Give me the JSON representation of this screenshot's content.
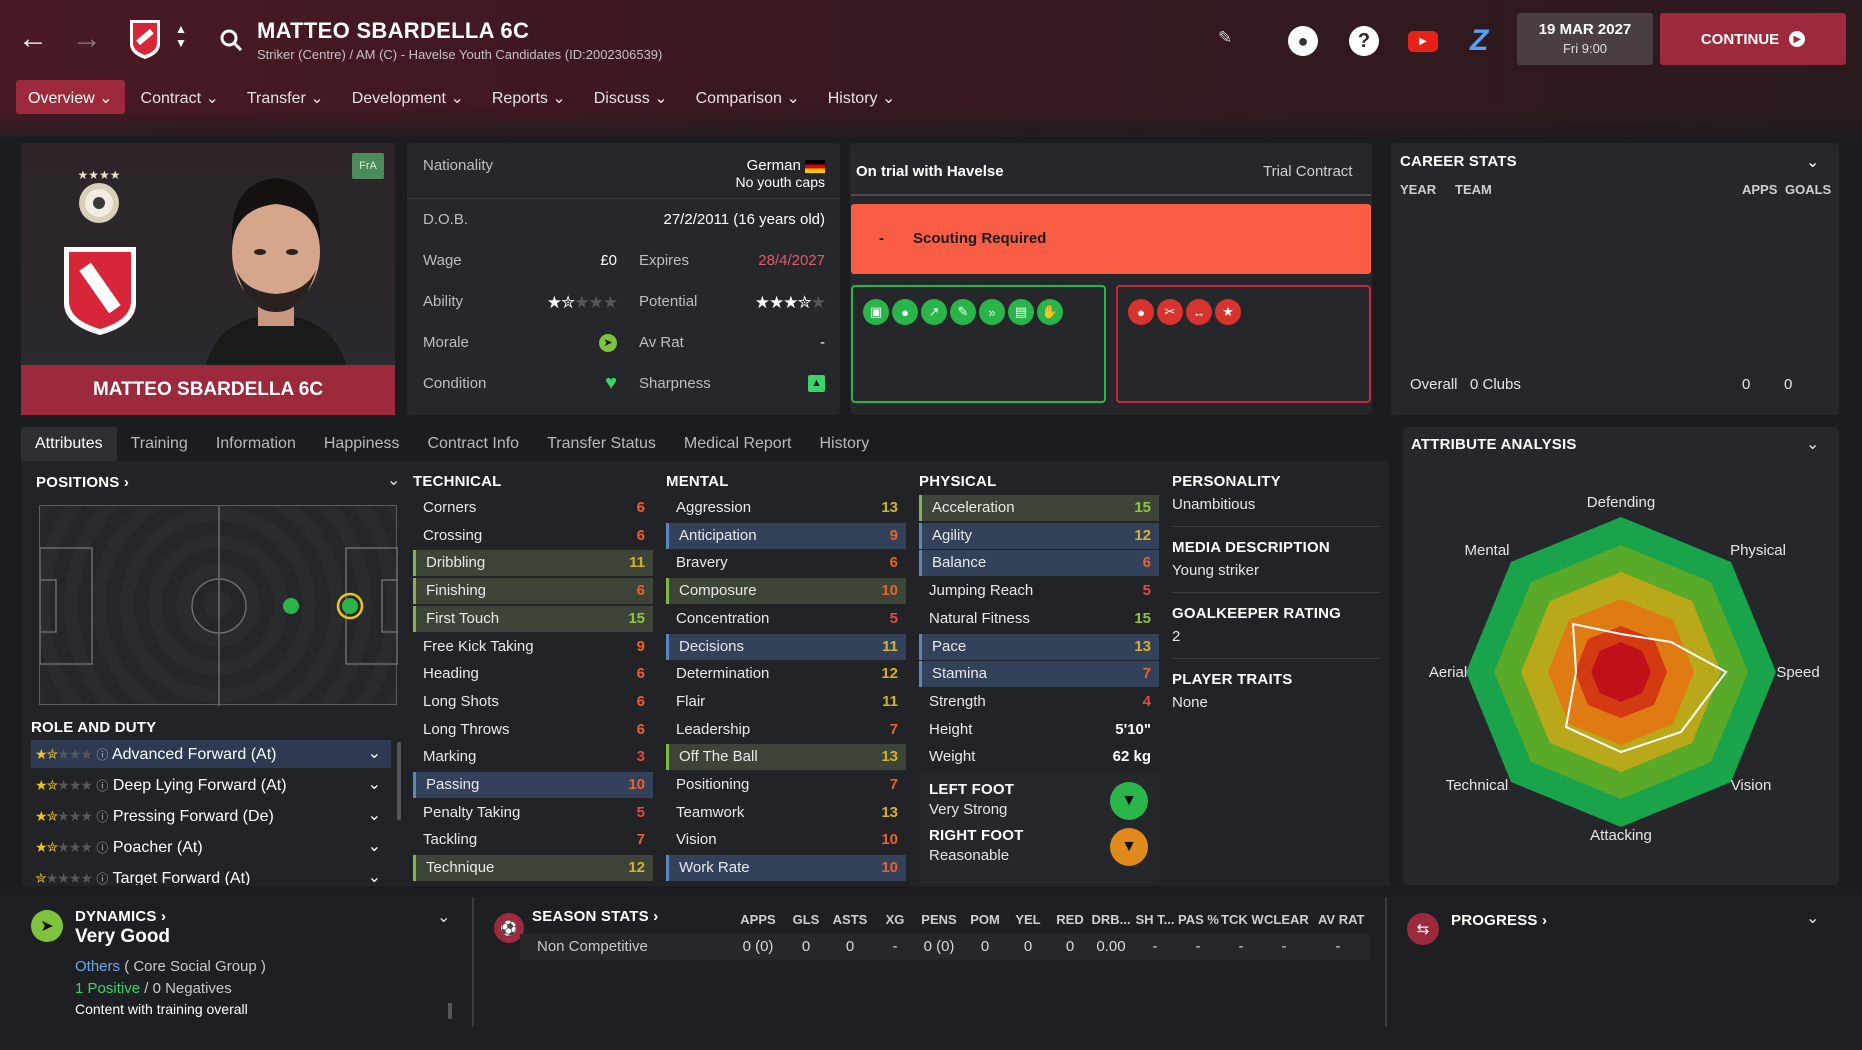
{
  "header": {
    "title": "MATTEO SBARDELLA 6C",
    "subtitle": "Striker (Centre) / AM (C) - Havelse Youth Candidates (ID:2002306539)",
    "date": "19 MAR 2027",
    "time": "Fri 9:00",
    "continue_label": "CONTINUE"
  },
  "menu": [
    "Overview",
    "Contract",
    "Transfer",
    "Development",
    "Reports",
    "Discuss",
    "Comparison",
    "History"
  ],
  "card": {
    "name": "MATTEO SBARDELLA 6C",
    "badge": "FrA"
  },
  "info": {
    "nationality_label": "Nationality",
    "nationality": "German",
    "caps": "No youth caps",
    "dob_label": "D.O.B.",
    "dob": "27/2/2011 (16 years old)",
    "wage_label": "Wage",
    "wage": "£0",
    "expires_label": "Expires",
    "expires": "28/4/2027",
    "ability_label": "Ability",
    "potential_label": "Potential",
    "ability_stars": 1.5,
    "potential_stars": 3.5,
    "morale_label": "Morale",
    "avrat_label": "Av Rat",
    "avrat": "-",
    "condition_label": "Condition",
    "sharpness_label": "Sharpness"
  },
  "trial": {
    "title": "On trial with Havelse",
    "contract": "Trial Contract",
    "scout_dash": "-",
    "scout": "Scouting Required"
  },
  "career": {
    "title": "CAREER STATS",
    "cols": [
      "YEAR",
      "TEAM",
      "APPS",
      "GOALS"
    ],
    "overall": "Overall",
    "clubs": "0 Clubs",
    "apps": "0",
    "goals": "0"
  },
  "tabs": [
    "Attributes",
    "Training",
    "Information",
    "Happiness",
    "Contract Info",
    "Transfer Status",
    "Medical Report",
    "History"
  ],
  "positions_title": "POSITIONS",
  "role_title": "ROLE AND DUTY",
  "roles": [
    "Advanced Forward (At)",
    "Deep Lying Forward (At)",
    "Pressing Forward (De)",
    "Poacher (At)",
    "Target Forward (At)"
  ],
  "technical": {
    "title": "TECHNICAL",
    "items": [
      [
        "Corners",
        "6"
      ],
      [
        "Crossing",
        "6"
      ],
      [
        "Dribbling",
        "11"
      ],
      [
        "Finishing",
        "6"
      ],
      [
        "First Touch",
        "15"
      ],
      [
        "Free Kick Taking",
        "9"
      ],
      [
        "Heading",
        "6"
      ],
      [
        "Long Shots",
        "6"
      ],
      [
        "Long Throws",
        "6"
      ],
      [
        "Marking",
        "3"
      ],
      [
        "Passing",
        "10"
      ],
      [
        "Penalty Taking",
        "5"
      ],
      [
        "Tackling",
        "7"
      ],
      [
        "Technique",
        "12"
      ]
    ]
  },
  "mental": {
    "title": "MENTAL",
    "items": [
      [
        "Aggression",
        "13"
      ],
      [
        "Anticipation",
        "9"
      ],
      [
        "Bravery",
        "6"
      ],
      [
        "Composure",
        "10"
      ],
      [
        "Concentration",
        "5"
      ],
      [
        "Decisions",
        "11"
      ],
      [
        "Determination",
        "12"
      ],
      [
        "Flair",
        "11"
      ],
      [
        "Leadership",
        "7"
      ],
      [
        "Off The Ball",
        "13"
      ],
      [
        "Positioning",
        "7"
      ],
      [
        "Teamwork",
        "13"
      ],
      [
        "Vision",
        "10"
      ],
      [
        "Work Rate",
        "10"
      ]
    ]
  },
  "physical": {
    "title": "PHYSICAL",
    "items": [
      [
        "Acceleration",
        "15"
      ],
      [
        "Agility",
        "12"
      ],
      [
        "Balance",
        "6"
      ],
      [
        "Jumping Reach",
        "5"
      ],
      [
        "Natural Fitness",
        "15"
      ],
      [
        "Pace",
        "13"
      ],
      [
        "Stamina",
        "7"
      ],
      [
        "Strength",
        "4"
      ],
      [
        "Height",
        "5'10\""
      ],
      [
        "Weight",
        "62 kg"
      ]
    ]
  },
  "feet": {
    "left_label": "LEFT FOOT",
    "left": "Very Strong",
    "right_label": "RIGHT FOOT",
    "right": "Reasonable"
  },
  "personality": {
    "p_label": "PERSONALITY",
    "p": "Unambitious",
    "m_label": "MEDIA DESCRIPTION",
    "m": "Young striker",
    "g_label": "GOALKEEPER RATING",
    "g": "2",
    "t_label": "PLAYER TRAITS",
    "t": "None"
  },
  "analysis": {
    "title": "ATTRIBUTE ANALYSIS",
    "labels": [
      "Defending",
      "Physical",
      "Speed",
      "Vision",
      "Attacking",
      "Technical",
      "Aerial",
      "Mental"
    ]
  },
  "dynamics": {
    "title": "DYNAMICS",
    "value": "Very Good",
    "group": "Others",
    "group_desc": "( Core Social Group )",
    "positive": "1 Positive",
    "sep": "/",
    "negative": "0 Negatives",
    "note": "Content with training overall"
  },
  "season": {
    "title": "SEASON STATS",
    "cols": [
      "APPS",
      "GLS",
      "ASTS",
      "XG",
      "PENS",
      "POM",
      "YEL",
      "RED",
      "DRB...",
      "SH T...",
      "PAS %",
      "TCK W",
      "CLEAR",
      "AV RAT"
    ],
    "row_label": "Non Competitive",
    "row": [
      "0 (0)",
      "0",
      "0",
      "-",
      "0 (0)",
      "0",
      "0",
      "0",
      "0.00",
      "-",
      "-",
      "-",
      "-",
      "-"
    ]
  },
  "progress": {
    "title": "PROGRESS"
  },
  "colors": {
    "accent": "#9c2a3c",
    "scout": "#f95d43",
    "green": "#2ab54a"
  }
}
